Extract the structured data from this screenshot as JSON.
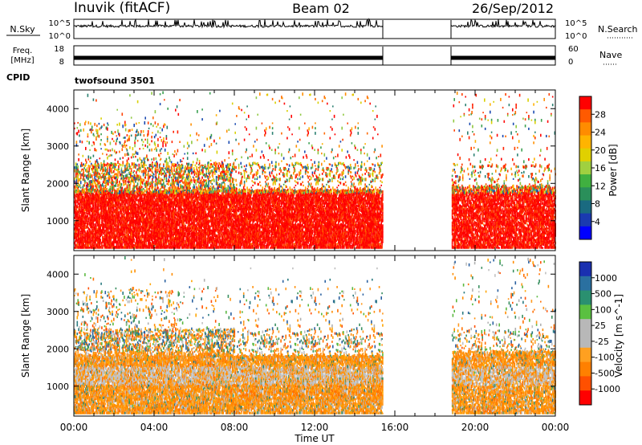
{
  "header": {
    "station": "Inuvik (fitACF)",
    "beam": "Beam 02",
    "date": "26/Sep/2012"
  },
  "noise_panel": {
    "left_label": "N.Sky",
    "right_label": "N.Search",
    "left_ticks": [
      "10^5",
      "10^0"
    ],
    "right_ticks": [
      "10^5",
      "10^0"
    ]
  },
  "freq_panel": {
    "left_label_line1": "Freq.",
    "left_label_line2": "[MHz]",
    "right_label": "Nave",
    "left_ticks": [
      "18",
      "8"
    ],
    "right_ticks": [
      "60",
      "0"
    ]
  },
  "cpid": {
    "label": "CPID",
    "value": "twofsound 3501"
  },
  "time_axis": {
    "label": "Time UT",
    "ticks": [
      "00:00",
      "04:00",
      "08:00",
      "12:00",
      "16:00",
      "20:00",
      "00:00"
    ],
    "start_hour": 0,
    "end_hour": 24
  },
  "chart_data": [
    {
      "type": "heatmap",
      "name": "power",
      "ylabel": "Slant Range [km]",
      "yticks": [
        1000,
        2000,
        3000,
        4000
      ],
      "ylim": [
        200,
        4500
      ],
      "colorbar_label": "Power [dB]",
      "colorbar_ticks": [
        "28",
        "24",
        "20",
        "16",
        "12",
        "8",
        "4"
      ],
      "colorbar_colors": [
        "#ff0000",
        "#ff5a00",
        "#ff8c00",
        "#ffb400",
        "#e0d000",
        "#a0d040",
        "#40b040",
        "#2a8f5a",
        "#1a6a80",
        "#1a3ab0",
        "#0000ff"
      ],
      "data_gap_hours": [
        15.4,
        18.8
      ]
    },
    {
      "type": "heatmap",
      "name": "velocity",
      "ylabel": "Slant Range [km]",
      "yticks": [
        1000,
        2000,
        3000,
        4000
      ],
      "ylim": [
        200,
        4500
      ],
      "colorbar_label": "Velocity [m s^-1]",
      "colorbar_ticks": [
        "1000",
        "500",
        "100",
        "25",
        "-25",
        "-100",
        "-500",
        "-1000"
      ],
      "colorbar_colors": [
        "#1a30b0",
        "#2a70a0",
        "#2a9070",
        "#5ac040",
        "#b8b8b8",
        "#b8b8b8",
        "#ffa020",
        "#ff8000",
        "#ff5000",
        "#ff0000"
      ],
      "data_gap_hours": [
        15.4,
        18.8
      ]
    }
  ]
}
